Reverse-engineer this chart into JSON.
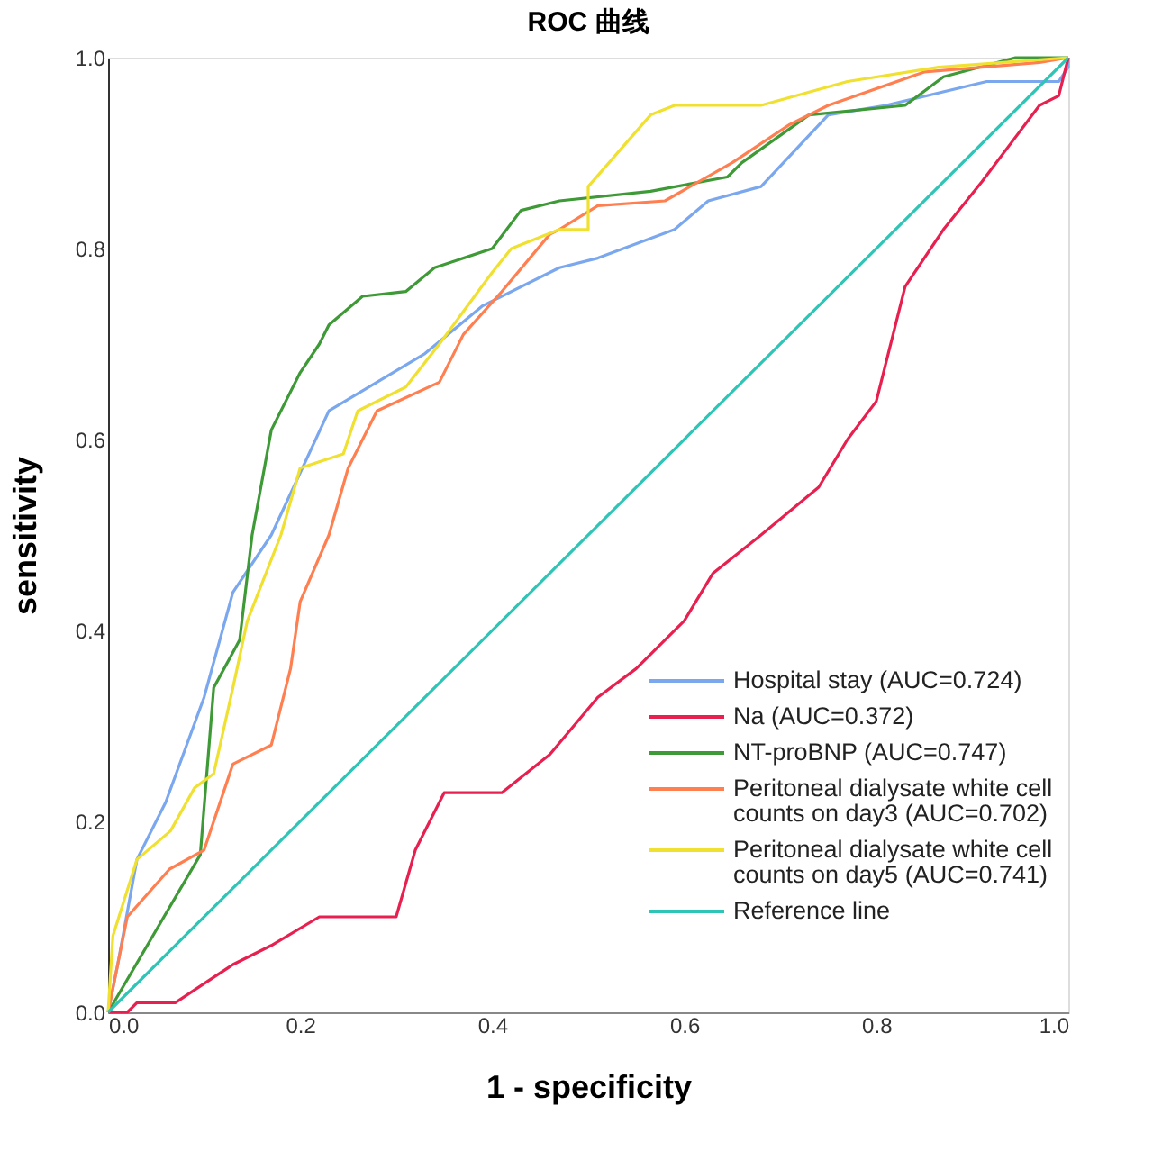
{
  "chart_data": {
    "type": "line",
    "title": "ROC 曲线",
    "xlabel": "1 - specificity",
    "ylabel": "sensitivity",
    "xlim": [
      0,
      1
    ],
    "ylim": [
      0,
      1
    ],
    "xticks": [
      {
        "value": 0,
        "label": "0.0"
      },
      0.2,
      0.4,
      0.6,
      0.8,
      {
        "value": 1,
        "label": "1.0"
      }
    ],
    "yticks": [
      {
        "value": 0,
        "label": "0.0"
      },
      0.2,
      0.4,
      0.6,
      0.8,
      {
        "value": 1,
        "label": "1.0"
      }
    ],
    "grid": false,
    "legend": "bottom right",
    "marker": "none",
    "line_style": "solid",
    "series": [
      {
        "name": "Hospital stay (AUC=0.724)",
        "color": "#7aa7ee",
        "x": [
          0,
          0.01,
          0.03,
          0.06,
          0.1,
          0.13,
          0.17,
          0.23,
          0.33,
          0.39,
          0.47,
          0.51,
          0.59,
          0.625,
          0.68,
          0.75,
          0.81,
          0.915,
          0.99,
          1.0,
          1.0
        ],
        "values": [
          0,
          0.05,
          0.16,
          0.22,
          0.33,
          0.44,
          0.5,
          0.63,
          0.69,
          0.74,
          0.78,
          0.79,
          0.82,
          0.85,
          0.865,
          0.94,
          0.95,
          0.975,
          0.975,
          0.99,
          1.0
        ]
      },
      {
        "name": "Na (AUC=0.372)",
        "color": "#e8204f",
        "x": [
          0,
          0.02,
          0.03,
          0.07,
          0.1,
          0.13,
          0.17,
          0.22,
          0.3,
          0.32,
          0.35,
          0.41,
          0.46,
          0.51,
          0.55,
          0.6,
          0.63,
          0.68,
          0.74,
          0.77,
          0.8,
          0.83,
          0.87,
          0.91,
          0.94,
          0.97,
          0.99,
          1.0
        ],
        "values": [
          0,
          0,
          0.01,
          0.01,
          0.03,
          0.05,
          0.07,
          0.1,
          0.1,
          0.17,
          0.23,
          0.23,
          0.27,
          0.33,
          0.36,
          0.41,
          0.46,
          0.5,
          0.55,
          0.6,
          0.64,
          0.76,
          0.82,
          0.87,
          0.91,
          0.95,
          0.96,
          1.0
        ]
      },
      {
        "name": "NT-proBNP (AUC=0.747)",
        "color": "#3e9a36",
        "x": [
          0,
          0.096,
          0.11,
          0.137,
          0.15,
          0.17,
          0.2,
          0.22,
          0.23,
          0.265,
          0.31,
          0.34,
          0.4,
          0.43,
          0.47,
          0.565,
          0.645,
          0.66,
          0.73,
          0.83,
          0.87,
          0.945,
          1.0
        ],
        "values": [
          0,
          0.165,
          0.34,
          0.39,
          0.5,
          0.61,
          0.67,
          0.7,
          0.72,
          0.75,
          0.755,
          0.78,
          0.8,
          0.84,
          0.85,
          0.86,
          0.875,
          0.89,
          0.94,
          0.95,
          0.98,
          1.0,
          1.0
        ]
      },
      {
        "name": "Peritoneal dialysate white cell counts on day3 (AUC=0.702)",
        "color": "#ff7f50",
        "x": [
          0,
          0.02,
          0.064,
          0.1,
          0.13,
          0.17,
          0.19,
          0.2,
          0.23,
          0.25,
          0.28,
          0.345,
          0.37,
          0.41,
          0.46,
          0.47,
          0.51,
          0.58,
          0.65,
          0.71,
          0.75,
          0.85,
          0.97,
          1.0
        ],
        "values": [
          0,
          0.1,
          0.15,
          0.17,
          0.26,
          0.28,
          0.36,
          0.43,
          0.5,
          0.57,
          0.63,
          0.66,
          0.71,
          0.755,
          0.815,
          0.82,
          0.845,
          0.85,
          0.89,
          0.93,
          0.95,
          0.985,
          0.995,
          1.0
        ]
      },
      {
        "name": "Peritoneal dialysate white cell counts on day5 (AUC=0.741)",
        "color": "#f0e030",
        "x": [
          0,
          0.005,
          0.03,
          0.065,
          0.09,
          0.11,
          0.13,
          0.145,
          0.18,
          0.2,
          0.245,
          0.26,
          0.31,
          0.345,
          0.4,
          0.42,
          0.47,
          0.5,
          0.5,
          0.565,
          0.59,
          0.68,
          0.77,
          0.865,
          1.0
        ],
        "values": [
          0,
          0.08,
          0.16,
          0.19,
          0.235,
          0.25,
          0.34,
          0.41,
          0.5,
          0.57,
          0.585,
          0.63,
          0.655,
          0.7,
          0.775,
          0.8,
          0.82,
          0.82,
          0.865,
          0.94,
          0.95,
          0.95,
          0.975,
          0.99,
          1.0
        ]
      },
      {
        "name": "Reference line",
        "color": "#2ec4b6",
        "x": [
          0,
          1
        ],
        "values": [
          0,
          1
        ]
      }
    ]
  }
}
